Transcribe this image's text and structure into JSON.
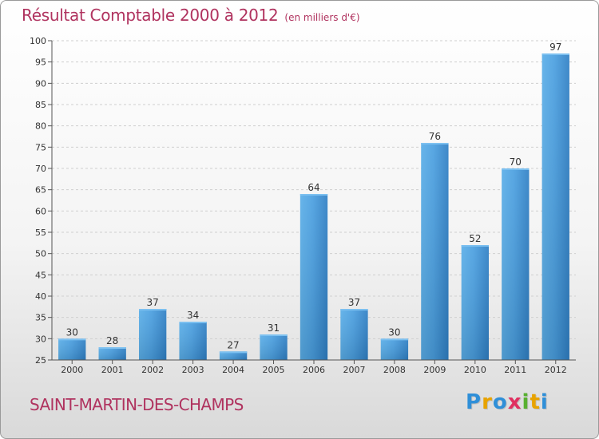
{
  "chart_data": {
    "type": "bar",
    "title": "Résultat Comptable 2000 à 2012",
    "subtitle": "(en milliers d'€)",
    "categories": [
      "2000",
      "2001",
      "2002",
      "2003",
      "2004",
      "2005",
      "2006",
      "2007",
      "2008",
      "2009",
      "2010",
      "2011",
      "2012"
    ],
    "values": [
      30,
      28,
      37,
      34,
      27,
      31,
      64,
      37,
      30,
      76,
      52,
      70,
      97
    ],
    "ylim": [
      25,
      100
    ],
    "yticks": [
      25,
      30,
      35,
      40,
      45,
      50,
      55,
      60,
      65,
      70,
      75,
      80,
      85,
      90,
      95,
      100
    ],
    "grid": true,
    "bar_color": "#3f93d6"
  },
  "footer": {
    "city": "SAINT-MARTIN-DES-CHAMPS",
    "logo_letters": [
      "P",
      "r",
      "o",
      "x",
      "i",
      "t",
      "i"
    ],
    "logo_colors": [
      "#2f8fd8",
      "#e8a300",
      "#2f8fd8",
      "#e03060",
      "#58b030",
      "#e8a300",
      "#2f8fd8"
    ]
  }
}
